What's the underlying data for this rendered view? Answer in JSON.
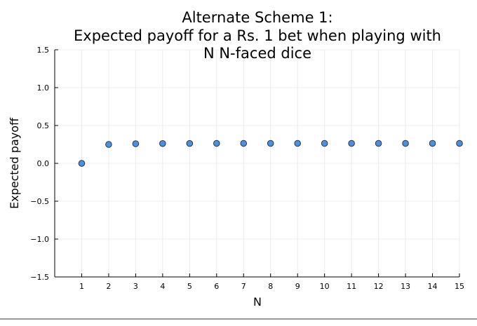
{
  "chart_data": {
    "type": "scatter",
    "title_lines": [
      "Alternate Scheme 1:",
      "Expected payoff for a Rs. 1 bet when playing with",
      "N N-faced dice"
    ],
    "xlabel": "N",
    "ylabel": "Expected payoff",
    "xlim": [
      0,
      15
    ],
    "ylim": [
      -1.5,
      1.5
    ],
    "xticks": [
      "1",
      "2",
      "3",
      "4",
      "5",
      "6",
      "7",
      "8",
      "9",
      "10",
      "11",
      "12",
      "13",
      "14",
      "15"
    ],
    "xtick_values": [
      1,
      2,
      3,
      4,
      5,
      6,
      7,
      8,
      9,
      10,
      11,
      12,
      13,
      14,
      15
    ],
    "yticks": [
      "−1.5",
      "−1.0",
      "−0.5",
      "0.0",
      "0.5",
      "1.0",
      "1.5"
    ],
    "ytick_values": [
      -1.5,
      -1.0,
      -0.5,
      0.0,
      0.5,
      1.0,
      1.5
    ],
    "grid": true,
    "legend": "none",
    "marker_color": "#4a90e2",
    "marker_edge_color": "#1c2a3a",
    "x": [
      1,
      2,
      3,
      4,
      5,
      6,
      7,
      8,
      9,
      10,
      11,
      12,
      13,
      14,
      15
    ],
    "y": [
      0.0,
      0.25,
      0.259,
      0.262,
      0.263,
      0.264,
      0.264,
      0.264,
      0.264,
      0.264,
      0.264,
      0.264,
      0.264,
      0.264,
      0.264
    ]
  }
}
